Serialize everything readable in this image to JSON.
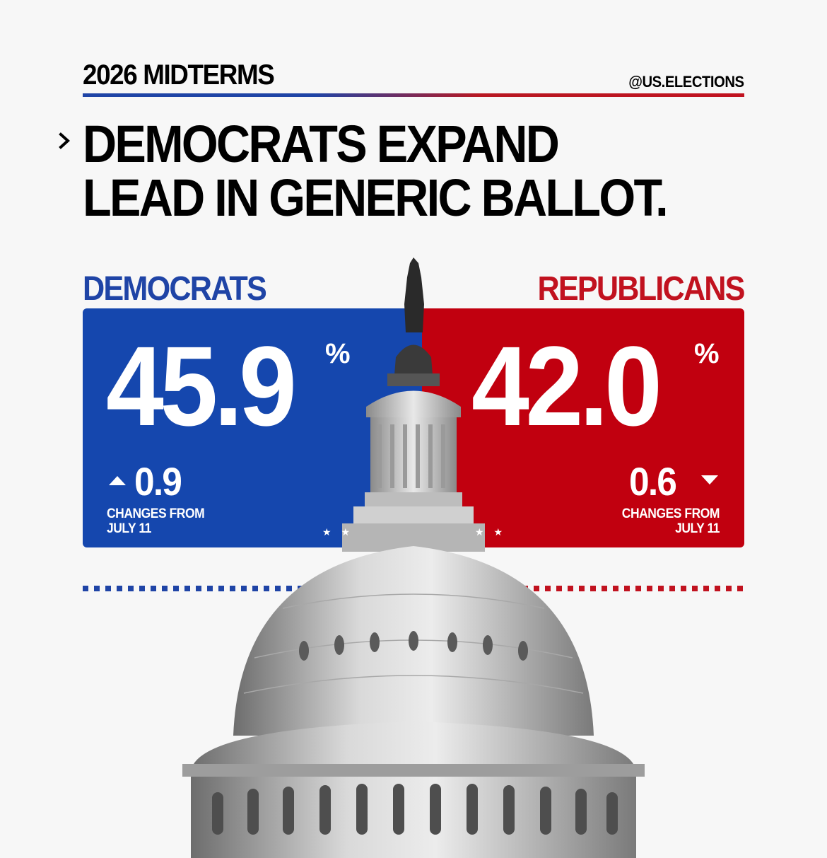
{
  "header": {
    "kicker": "2026 MIDTERMS",
    "handle": "@US.ELECTIONS",
    "headline_line1": "DEMOCRATS EXPAND",
    "headline_line2": "LEAD IN GENERIC BALLOT."
  },
  "democrats": {
    "label": "DEMOCRATS",
    "value": "45.9",
    "percent_sign": "%",
    "change": "0.9",
    "change_direction": "up",
    "note_line1": "CHANGES FROM",
    "note_line2": "JULY 11",
    "color": "#1547ae"
  },
  "republicans": {
    "label": "REPUBLICANS",
    "value": "42.0",
    "percent_sign": "%",
    "change": "0.6",
    "change_direction": "down",
    "note_line1": "CHANGES FROM",
    "note_line2": "JULY 11",
    "color": "#c1000f"
  },
  "icons": {
    "chevron": "chevron-right-icon",
    "up": "triangle-up-icon",
    "down": "triangle-down-icon",
    "image": "us-capitol-dome"
  }
}
